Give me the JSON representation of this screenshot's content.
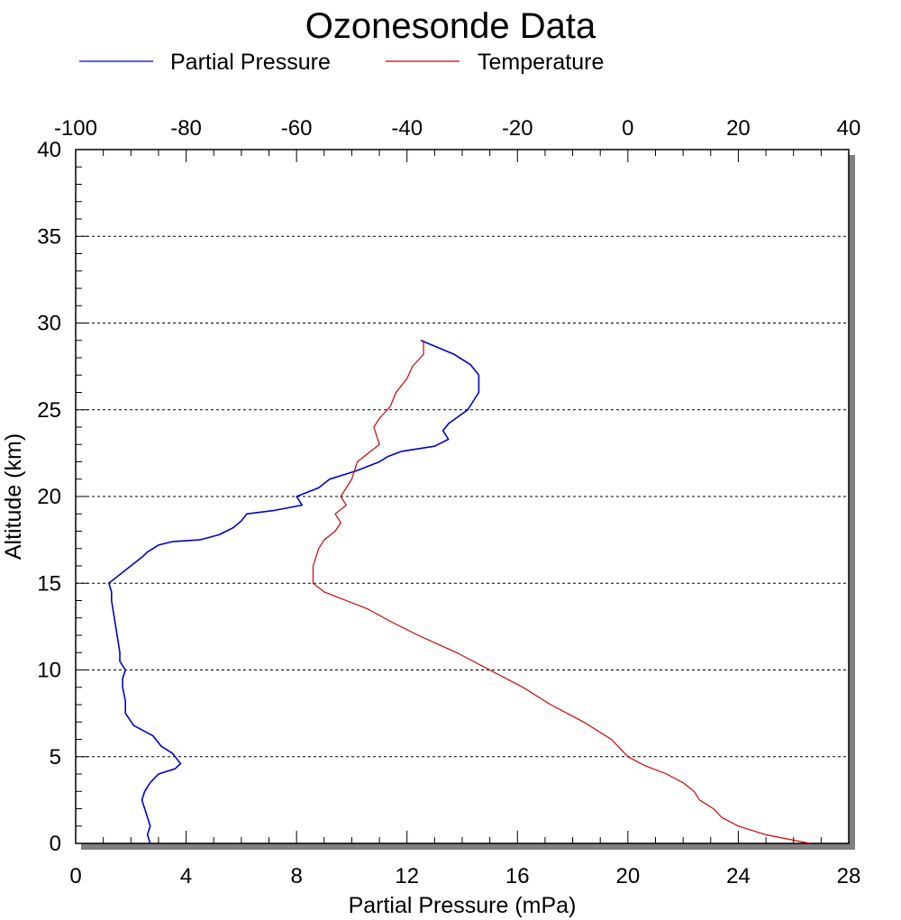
{
  "chart_data": {
    "type": "line",
    "title": "Ozonesonde Data",
    "xlabel": "Partial Pressure (mPa)",
    "ylabel": "Altitude (km)",
    "x_bottom_range": [
      0,
      28
    ],
    "x_top_range": [
      -100,
      40
    ],
    "ylim": [
      0,
      40
    ],
    "x_bottom_ticks": [
      "0",
      "4",
      "8",
      "12",
      "16",
      "20",
      "24",
      "28"
    ],
    "x_top_ticks": [
      "-100",
      "-80",
      "-60",
      "-40",
      "-20",
      "0",
      "20",
      "40"
    ],
    "y_ticks": [
      "0",
      "5",
      "10",
      "15",
      "20",
      "25",
      "30",
      "35",
      "40"
    ],
    "grid": "horizontal dashed at major y ticks",
    "legend_position": "top",
    "series": [
      {
        "name": "Partial Pressure",
        "axis": "bottom",
        "color": "#0000cc",
        "points": [
          [
            2.7,
            0
          ],
          [
            2.6,
            0.5
          ],
          [
            2.7,
            1
          ],
          [
            2.5,
            2
          ],
          [
            2.4,
            2.5
          ],
          [
            2.5,
            3
          ],
          [
            2.7,
            3.5
          ],
          [
            3.0,
            4
          ],
          [
            3.6,
            4.3
          ],
          [
            3.8,
            4.6
          ],
          [
            3.5,
            5.2
          ],
          [
            3.1,
            5.6
          ],
          [
            2.8,
            6.2
          ],
          [
            2.1,
            6.8
          ],
          [
            1.8,
            7.5
          ],
          [
            1.8,
            8.2
          ],
          [
            1.7,
            9
          ],
          [
            1.7,
            9.5
          ],
          [
            1.8,
            10
          ],
          [
            1.6,
            10.5
          ],
          [
            1.6,
            11
          ],
          [
            1.5,
            12
          ],
          [
            1.4,
            13
          ],
          [
            1.3,
            14
          ],
          [
            1.3,
            14.5
          ],
          [
            1.2,
            15
          ],
          [
            1.6,
            15.5
          ],
          [
            2.0,
            16
          ],
          [
            2.4,
            16.5
          ],
          [
            2.6,
            16.8
          ],
          [
            3.0,
            17.2
          ],
          [
            3.5,
            17.4
          ],
          [
            4.5,
            17.5
          ],
          [
            5.2,
            17.8
          ],
          [
            5.7,
            18.2
          ],
          [
            6.0,
            18.6
          ],
          [
            6.2,
            19
          ],
          [
            7.2,
            19.2
          ],
          [
            8.2,
            19.5
          ],
          [
            8.0,
            20
          ],
          [
            8.8,
            20.5
          ],
          [
            9.2,
            21
          ],
          [
            10.2,
            21.5
          ],
          [
            11.0,
            22
          ],
          [
            11.3,
            22.3
          ],
          [
            11.8,
            22.6
          ],
          [
            13.0,
            22.9
          ],
          [
            13.5,
            23.3
          ],
          [
            13.3,
            23.8
          ],
          [
            13.5,
            24.2
          ],
          [
            14.2,
            25
          ],
          [
            14.6,
            26
          ],
          [
            14.6,
            27
          ],
          [
            14.3,
            27.6
          ],
          [
            13.7,
            28.2
          ],
          [
            13.1,
            28.6
          ],
          [
            12.5,
            29
          ]
        ]
      },
      {
        "name": "Temperature",
        "axis": "top",
        "color": "#cc0000",
        "points": [
          [
            33,
            0
          ],
          [
            25,
            0.5
          ],
          [
            20,
            1
          ],
          [
            17,
            1.5
          ],
          [
            15.5,
            2
          ],
          [
            13,
            2.5
          ],
          [
            12,
            3
          ],
          [
            10,
            3.5
          ],
          [
            7,
            4
          ],
          [
            3,
            4.5
          ],
          [
            0,
            5
          ],
          [
            -3,
            6
          ],
          [
            -8,
            7
          ],
          [
            -14,
            8
          ],
          [
            -19,
            9
          ],
          [
            -25,
            10
          ],
          [
            -31,
            11
          ],
          [
            -38,
            12
          ],
          [
            -43,
            12.8
          ],
          [
            -47,
            13.5
          ],
          [
            -51,
            14
          ],
          [
            -55,
            14.5
          ],
          [
            -57,
            15
          ],
          [
            -57,
            15.5
          ],
          [
            -57,
            16
          ],
          [
            -56,
            17
          ],
          [
            -55,
            17.5
          ],
          [
            -53,
            18
          ],
          [
            -52,
            18.5
          ],
          [
            -53,
            19
          ],
          [
            -51,
            19.5
          ],
          [
            -52,
            20
          ],
          [
            -50,
            21
          ],
          [
            -49,
            22
          ],
          [
            -47,
            22.5
          ],
          [
            -45,
            23
          ],
          [
            -46,
            24
          ],
          [
            -45,
            24.5
          ],
          [
            -43,
            25.2
          ],
          [
            -42,
            26
          ],
          [
            -40,
            26.8
          ],
          [
            -39,
            27.5
          ],
          [
            -37,
            28.2
          ],
          [
            -37,
            29
          ]
        ]
      }
    ]
  },
  "legend": [
    {
      "label": "Partial Pressure",
      "color": "#0000cc"
    },
    {
      "label": "Temperature",
      "color": "#cc0000"
    }
  ]
}
